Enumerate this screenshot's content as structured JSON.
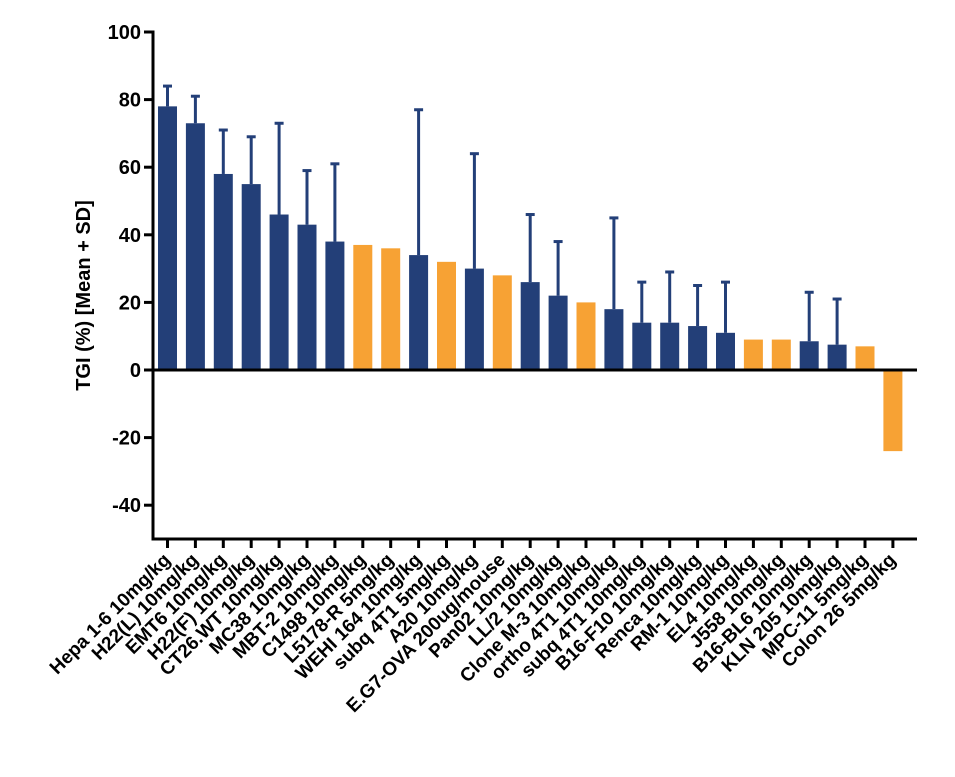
{
  "chart_data": {
    "type": "bar",
    "title": "",
    "xlabel": "",
    "ylabel": "TGI (%) [Mean + SD]",
    "ylim": [
      -50,
      100
    ],
    "yticks": [
      100,
      80,
      60,
      40,
      20,
      0,
      -20,
      -40
    ],
    "ytick_labels": [
      "100",
      "80",
      "60",
      "40",
      "20",
      "0",
      "-20",
      "-40"
    ],
    "grid": false,
    "legend": null,
    "colors": {
      "series_with_sd": "#233f78",
      "series_no_sd": "#f7a234",
      "axis": "#000000"
    },
    "categories": [
      "Hepa 1-6 10mg/kg",
      "H22(L) 10mg/kg",
      "EMT6 10mg/kg",
      "H22(F) 10mg/kg",
      "CT26.WT 10mg/kg",
      "MC38 10mg/kg",
      "MBT-2 10mg/kg",
      "C1498 10mg/kg",
      "L5178-R 5mg/kg",
      "WEHI 164 10mg/kg",
      "subq 4T1 5mg/kg",
      "A20 10mg/kg",
      "E.G7-OVA 200ug/mouse",
      "Pan02 10mg/kg",
      "LL/2 10mg/kg",
      "Clone M-3 10mg/kg",
      "ortho 4T1 10mg/kg",
      "subq 4T1 10mg/kg",
      "B16-F10 10mg/kg",
      "Renca 10mg/kg",
      "RM-1 10mg/kg",
      "EL4 10mg/kg",
      "J558 10mg/kg",
      "B16-BL6 10mg/kg",
      "KLN 205 10mg/kg",
      "MPC-11 5mg/kg",
      "Colon 26 5mg/kg"
    ],
    "values": [
      78,
      73,
      58,
      55,
      46,
      43,
      38,
      37,
      36,
      34,
      32,
      30,
      28,
      26,
      22,
      20,
      18,
      14,
      14,
      13,
      11,
      9,
      9,
      8.5,
      7.5,
      7,
      -24
    ],
    "error_upper": [
      84,
      81,
      71,
      69,
      73,
      59,
      61,
      null,
      null,
      77,
      null,
      64,
      null,
      46,
      38,
      null,
      45,
      26,
      29,
      25,
      26,
      null,
      null,
      23,
      21,
      null,
      null
    ],
    "bar_color_group": [
      "blue",
      "blue",
      "blue",
      "blue",
      "blue",
      "blue",
      "blue",
      "orange",
      "orange",
      "blue",
      "orange",
      "blue",
      "orange",
      "blue",
      "blue",
      "orange",
      "blue",
      "blue",
      "blue",
      "blue",
      "blue",
      "orange",
      "orange",
      "blue",
      "blue",
      "orange",
      "orange"
    ]
  }
}
